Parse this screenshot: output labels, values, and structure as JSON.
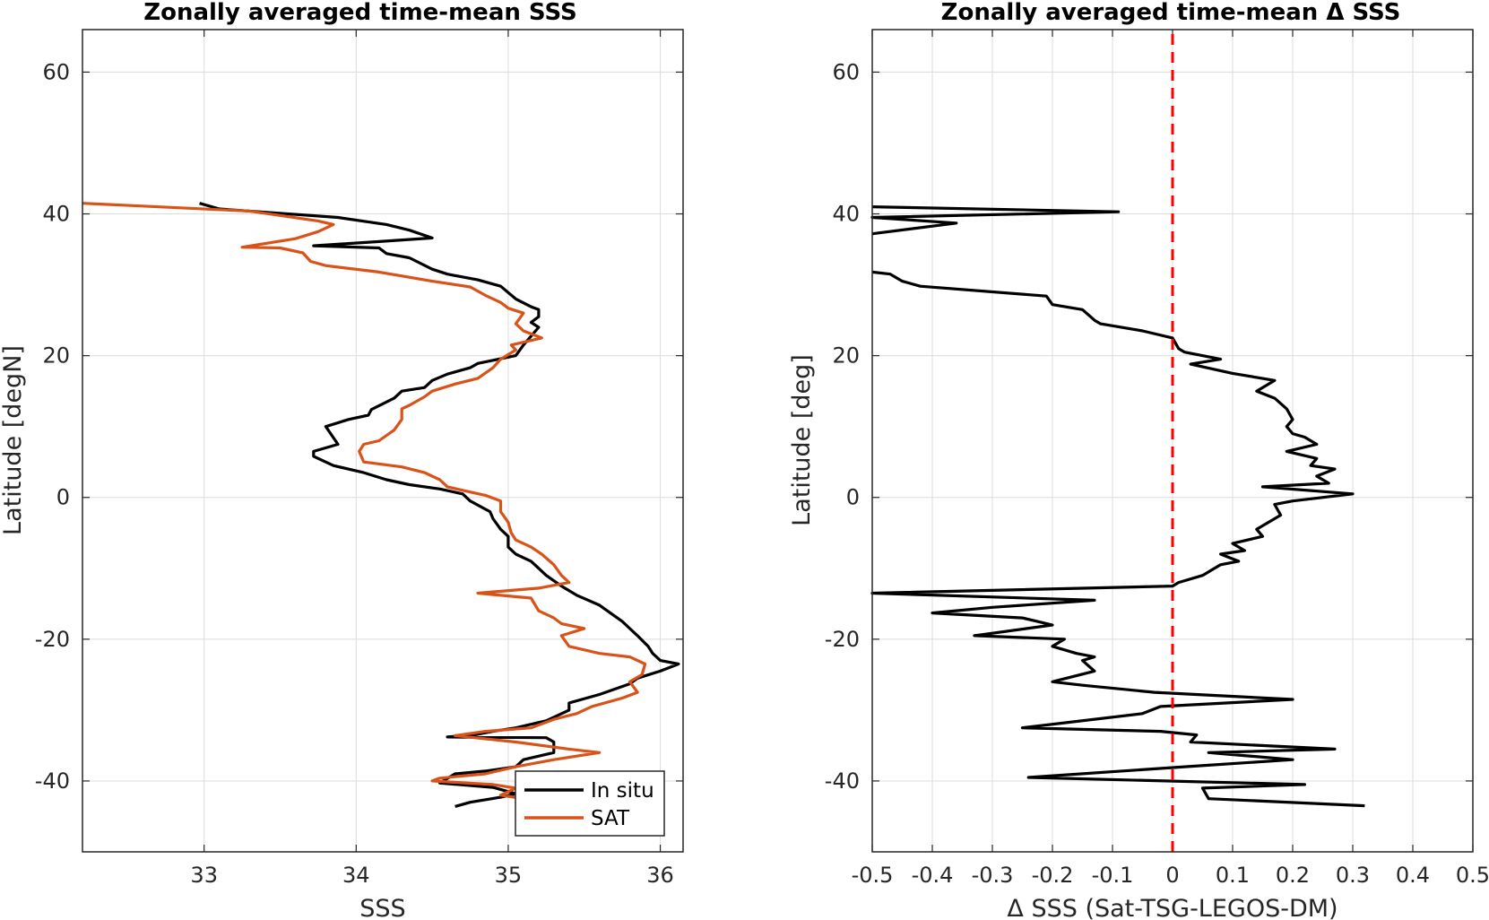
{
  "chart_data": [
    {
      "type": "line",
      "title": "Zonally averaged time-mean SSS",
      "xlabel": "SSS",
      "ylabel": "Latitude [degN]",
      "xlim": [
        32.2,
        36.15
      ],
      "ylim": [
        -50,
        66
      ],
      "xticks": [
        "33",
        "34",
        "35",
        "36"
      ],
      "yticks": [
        "60",
        "40",
        "20",
        "0",
        "-20",
        "-40"
      ],
      "grid": true,
      "legend": "bottom-right",
      "series": [
        {
          "name": "In situ",
          "color": "#000000",
          "points": [
            [
              32.97,
              41.5
            ],
            [
              33.1,
              40.7
            ],
            [
              33.88,
              39.5
            ],
            [
              34.2,
              38.5
            ],
            [
              34.35,
              37.7
            ],
            [
              34.5,
              36.6
            ],
            [
              34.15,
              36.1
            ],
            [
              33.72,
              35.5
            ],
            [
              34.15,
              35.2
            ],
            [
              34.2,
              34.4
            ],
            [
              34.35,
              33.8
            ],
            [
              34.5,
              32.2
            ],
            [
              34.6,
              31.5
            ],
            [
              34.8,
              30.7
            ],
            [
              34.95,
              29.8
            ],
            [
              35.05,
              28.0
            ],
            [
              35.15,
              26.9
            ],
            [
              35.2,
              26.5
            ],
            [
              35.2,
              25.5
            ],
            [
              35.15,
              24.7
            ],
            [
              35.2,
              24.0
            ],
            [
              35.1,
              21.5
            ],
            [
              35.05,
              20.0
            ],
            [
              34.8,
              18.9
            ],
            [
              34.75,
              18.3
            ],
            [
              34.6,
              17.4
            ],
            [
              34.5,
              16.5
            ],
            [
              34.45,
              15.5
            ],
            [
              34.3,
              15.0
            ],
            [
              34.25,
              14.0
            ],
            [
              34.1,
              12.4
            ],
            [
              34.08,
              11.6
            ],
            [
              33.95,
              11.0
            ],
            [
              33.8,
              10.0
            ],
            [
              33.88,
              7.5
            ],
            [
              33.72,
              6.5
            ],
            [
              33.72,
              5.8
            ],
            [
              33.85,
              4.5
            ],
            [
              34.05,
              3.5
            ],
            [
              34.2,
              2.5
            ],
            [
              34.35,
              1.8
            ],
            [
              34.55,
              1.2
            ],
            [
              34.7,
              0.5
            ],
            [
              34.75,
              -0.5
            ],
            [
              34.88,
              -2.0
            ],
            [
              34.9,
              -3.0
            ],
            [
              34.95,
              -4.5
            ],
            [
              35.0,
              -5.5
            ],
            [
              35.0,
              -7.0
            ],
            [
              35.05,
              -8.0
            ],
            [
              35.15,
              -9.0
            ],
            [
              35.2,
              -10.0
            ],
            [
              35.25,
              -11.0
            ],
            [
              35.35,
              -12.5
            ],
            [
              35.45,
              -13.8
            ],
            [
              35.6,
              -15.2
            ],
            [
              35.75,
              -17.5
            ],
            [
              35.8,
              -18.5
            ],
            [
              35.85,
              -19.5
            ],
            [
              35.92,
              -21.0
            ],
            [
              35.95,
              -22.0
            ],
            [
              36.0,
              -23.0
            ],
            [
              36.12,
              -23.5
            ],
            [
              36.0,
              -24.5
            ],
            [
              35.85,
              -25.5
            ],
            [
              35.8,
              -26.3
            ],
            [
              35.6,
              -27.8
            ],
            [
              35.4,
              -29.0
            ],
            [
              35.4,
              -30.0
            ],
            [
              35.25,
              -31.5
            ],
            [
              35.05,
              -32.5
            ],
            [
              34.9,
              -33.0
            ],
            [
              34.78,
              -33.5
            ],
            [
              34.6,
              -33.8
            ],
            [
              35.25,
              -33.9
            ],
            [
              35.3,
              -34.5
            ],
            [
              35.3,
              -36.0
            ],
            [
              35.1,
              -37.0
            ],
            [
              35.05,
              -38.0
            ],
            [
              34.85,
              -38.6
            ],
            [
              34.65,
              -39.0
            ],
            [
              34.55,
              -40.3
            ],
            [
              34.9,
              -40.9
            ],
            [
              35.05,
              -41.8
            ],
            [
              34.95,
              -42.3
            ],
            [
              34.75,
              -43.0
            ],
            [
              34.65,
              -43.6
            ]
          ]
        },
        {
          "name": "SAT",
          "color": "#D95319",
          "points": [
            [
              32.2,
              41.5
            ],
            [
              33.3,
              40.4
            ],
            [
              33.75,
              39.0
            ],
            [
              33.85,
              38.5
            ],
            [
              33.75,
              37.5
            ],
            [
              33.6,
              36.5
            ],
            [
              33.25,
              35.3
            ],
            [
              33.5,
              35.2
            ],
            [
              33.65,
              34.5
            ],
            [
              33.7,
              33.3
            ],
            [
              33.8,
              32.7
            ],
            [
              34.15,
              31.8
            ],
            [
              34.5,
              30.5
            ],
            [
              34.75,
              29.7
            ],
            [
              34.85,
              28.5
            ],
            [
              34.95,
              27.5
            ],
            [
              35.0,
              26.7
            ],
            [
              35.1,
              26.0
            ],
            [
              35.05,
              24.5
            ],
            [
              35.1,
              23.5
            ],
            [
              35.22,
              22.5
            ],
            [
              35.02,
              21.5
            ],
            [
              35.05,
              20.8
            ],
            [
              34.95,
              19.5
            ],
            [
              34.9,
              18.3
            ],
            [
              34.8,
              16.8
            ],
            [
              34.65,
              16.0
            ],
            [
              34.5,
              15.0
            ],
            [
              34.45,
              14.2
            ],
            [
              34.35,
              13.0
            ],
            [
              34.3,
              12.5
            ],
            [
              34.3,
              11.0
            ],
            [
              34.25,
              9.5
            ],
            [
              34.15,
              8.0
            ],
            [
              34.05,
              7.5
            ],
            [
              34.02,
              6.5
            ],
            [
              34.05,
              5.0
            ],
            [
              34.3,
              4.3
            ],
            [
              34.45,
              3.5
            ],
            [
              34.55,
              2.5
            ],
            [
              34.6,
              1.5
            ],
            [
              34.7,
              1.0
            ],
            [
              34.85,
              0.3
            ],
            [
              34.95,
              -0.5
            ],
            [
              34.95,
              -2.0
            ],
            [
              35.0,
              -3.5
            ],
            [
              35.02,
              -5.0
            ],
            [
              35.05,
              -6.0
            ],
            [
              35.15,
              -7.0
            ],
            [
              35.22,
              -8.0
            ],
            [
              35.3,
              -9.5
            ],
            [
              35.35,
              -11.0
            ],
            [
              35.4,
              -12.0
            ],
            [
              35.2,
              -12.8
            ],
            [
              34.8,
              -13.5
            ],
            [
              35.15,
              -14.2
            ],
            [
              35.2,
              -16.0
            ],
            [
              35.3,
              -17.0
            ],
            [
              35.35,
              -17.8
            ],
            [
              35.5,
              -18.5
            ],
            [
              35.35,
              -19.5
            ],
            [
              35.4,
              -21.0
            ],
            [
              35.6,
              -22.0
            ],
            [
              35.8,
              -22.5
            ],
            [
              35.9,
              -23.5
            ],
            [
              35.88,
              -25.0
            ],
            [
              35.8,
              -26.0
            ],
            [
              35.85,
              -27.5
            ],
            [
              35.75,
              -28.3
            ],
            [
              35.55,
              -29.5
            ],
            [
              35.45,
              -30.5
            ],
            [
              35.3,
              -31.3
            ],
            [
              35.15,
              -32.5
            ],
            [
              34.85,
              -33.0
            ],
            [
              34.65,
              -33.6
            ],
            [
              35.05,
              -34.5
            ],
            [
              35.4,
              -35.5
            ],
            [
              35.6,
              -36.0
            ],
            [
              35.3,
              -37.0
            ],
            [
              35.05,
              -38.0
            ],
            [
              34.85,
              -39.0
            ],
            [
              34.55,
              -39.6
            ],
            [
              34.5,
              -40.0
            ],
            [
              34.9,
              -40.5
            ],
            [
              35.05,
              -41.0
            ],
            [
              34.95,
              -42.0
            ],
            [
              35.1,
              -42.5
            ]
          ]
        }
      ]
    },
    {
      "type": "line",
      "title": "Zonally averaged time-mean Δ SSS",
      "xlabel": "Δ SSS (Sat-TSG-LEGOS-DM)",
      "ylabel": "Latitude [deg]",
      "xlim": [
        -0.5,
        0.5
      ],
      "ylim": [
        -50,
        66
      ],
      "xticks": [
        "-0.5",
        "-0.4",
        "-0.3",
        "-0.2",
        "-0.1",
        "0",
        "0.1",
        "0.2",
        "0.3",
        "0.4",
        "0.5"
      ],
      "yticks": [
        "60",
        "40",
        "20",
        "0",
        "-20",
        "-40"
      ],
      "grid": true,
      "series": [
        {
          "color": "#000000",
          "points": [
            [
              -0.5,
              41.0
            ],
            [
              -0.09,
              40.3
            ],
            [
              -0.5,
              39.5
            ],
            [
              -0.36,
              38.7
            ],
            [
              -0.5,
              37.2
            ]
          ]
        },
        {
          "color": "#000000",
          "points": [
            [
              -0.5,
              31.8
            ],
            [
              -0.47,
              31.5
            ],
            [
              -0.45,
              30.5
            ],
            [
              -0.42,
              29.8
            ],
            [
              -0.21,
              28.4
            ],
            [
              -0.2,
              27.2
            ],
            [
              -0.15,
              26.5
            ],
            [
              -0.13,
              25.0
            ],
            [
              -0.12,
              24.5
            ],
            [
              -0.05,
              23.5
            ],
            [
              0.0,
              22.5
            ],
            [
              0.01,
              21.0
            ],
            [
              0.02,
              20.5
            ],
            [
              0.08,
              19.5
            ],
            [
              0.03,
              18.8
            ],
            [
              0.1,
              17.5
            ],
            [
              0.17,
              16.5
            ],
            [
              0.14,
              15.0
            ],
            [
              0.17,
              14.0
            ],
            [
              0.19,
              12.5
            ],
            [
              0.2,
              11.0
            ],
            [
              0.19,
              10.0
            ],
            [
              0.2,
              9.0
            ],
            [
              0.22,
              8.5
            ],
            [
              0.24,
              7.5
            ],
            [
              0.19,
              6.5
            ],
            [
              0.24,
              5.5
            ],
            [
              0.23,
              4.5
            ],
            [
              0.27,
              4.0
            ],
            [
              0.24,
              3.0
            ],
            [
              0.26,
              2.0
            ],
            [
              0.15,
              1.5
            ],
            [
              0.3,
              0.5
            ],
            [
              0.2,
              -0.5
            ],
            [
              0.17,
              -1.0
            ],
            [
              0.18,
              -2.5
            ],
            [
              0.14,
              -4.5
            ],
            [
              0.15,
              -5.5
            ],
            [
              0.1,
              -6.5
            ],
            [
              0.12,
              -7.5
            ],
            [
              0.08,
              -8.0
            ],
            [
              0.11,
              -9.0
            ],
            [
              0.08,
              -9.5
            ],
            [
              0.06,
              -10.5
            ],
            [
              0.05,
              -11.0
            ],
            [
              0.01,
              -12.0
            ],
            [
              0.0,
              -12.5
            ],
            [
              -0.5,
              -13.5
            ],
            [
              -0.13,
              -14.5
            ],
            [
              -0.3,
              -15.5
            ],
            [
              -0.4,
              -16.3
            ],
            [
              -0.25,
              -17.0
            ],
            [
              -0.2,
              -18.0
            ],
            [
              -0.33,
              -19.5
            ],
            [
              -0.18,
              -20.0
            ],
            [
              -0.2,
              -21.0
            ],
            [
              -0.16,
              -22.0
            ],
            [
              -0.13,
              -22.5
            ],
            [
              -0.15,
              -23.0
            ],
            [
              -0.13,
              -24.5
            ],
            [
              -0.2,
              -26.0
            ],
            [
              -0.15,
              -26.5
            ],
            [
              -0.03,
              -27.5
            ],
            [
              0.2,
              -28.5
            ],
            [
              -0.02,
              -29.5
            ],
            [
              -0.05,
              -30.5
            ],
            [
              -0.25,
              -32.5
            ],
            [
              -0.02,
              -33.0
            ],
            [
              0.04,
              -33.5
            ],
            [
              0.03,
              -34.5
            ],
            [
              0.27,
              -35.5
            ],
            [
              0.06,
              -36.0
            ],
            [
              0.2,
              -37.0
            ],
            [
              0.02,
              -38.0
            ],
            [
              -0.24,
              -39.5
            ],
            [
              0.22,
              -40.5
            ],
            [
              0.05,
              -41.0
            ],
            [
              0.06,
              -42.5
            ],
            [
              0.32,
              -43.5
            ]
          ]
        },
        {
          "color": "#FF0000",
          "dashed": true,
          "points": [
            [
              0,
              -50
            ],
            [
              0,
              66
            ]
          ]
        }
      ]
    }
  ]
}
